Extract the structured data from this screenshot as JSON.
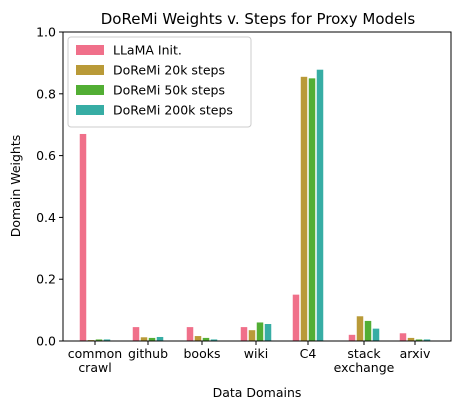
{
  "chart_data": {
    "type": "bar",
    "title": "DoReMi Weights v. Steps for Proxy Models",
    "xlabel": "Data Domains",
    "ylabel": "Domain Weights",
    "ylim": [
      0,
      1.0
    ],
    "yticks": [
      "0.0",
      "0.2",
      "0.4",
      "0.6",
      "0.8",
      "1.0"
    ],
    "categories": [
      [
        "common",
        "crawl"
      ],
      [
        "github"
      ],
      [
        "books"
      ],
      [
        "wiki"
      ],
      [
        "C4"
      ],
      [
        "stack",
        "exchange"
      ],
      [
        "arxiv"
      ]
    ],
    "legend_position": "top-left",
    "series": [
      {
        "name": "LLaMA Init.",
        "color": "#f0708a",
        "values": [
          0.67,
          0.045,
          0.045,
          0.045,
          0.15,
          0.02,
          0.025
        ]
      },
      {
        "name": "DoReMi 20k steps",
        "color": "#b99a38",
        "values": [
          0.003,
          0.012,
          0.016,
          0.035,
          0.855,
          0.08,
          0.01
        ]
      },
      {
        "name": "DoReMi 50k steps",
        "color": "#52ae34",
        "values": [
          0.005,
          0.01,
          0.01,
          0.06,
          0.85,
          0.065,
          0.005
        ]
      },
      {
        "name": "DoReMi 200k steps",
        "color": "#37ada4",
        "values": [
          0.005,
          0.013,
          0.005,
          0.055,
          0.878,
          0.04,
          0.005
        ]
      }
    ]
  }
}
